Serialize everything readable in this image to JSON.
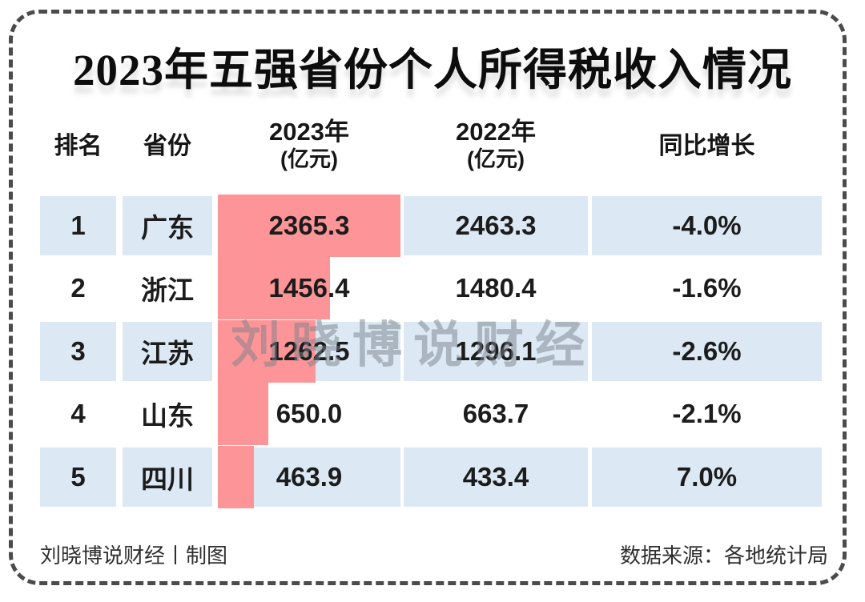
{
  "title": "2023年五强省份个人所得税收入情况",
  "table": {
    "headers": {
      "rank": "排名",
      "province": "省份",
      "y2023_line1": "2023年",
      "y2023_line2": "(亿元)",
      "y2022_line1": "2022年",
      "y2022_line2": "(亿元)",
      "growth": "同比增长"
    },
    "rows": [
      {
        "rank": "1",
        "province": "广东",
        "y2023": "2365.3",
        "y2022": "2463.3",
        "growth": "-4.0%"
      },
      {
        "rank": "2",
        "province": "浙江",
        "y2023": "1456.4",
        "y2022": "1480.4",
        "growth": "-1.6%"
      },
      {
        "rank": "3",
        "province": "江苏",
        "y2023": "1262.5",
        "y2022": "1296.1",
        "growth": "-2.6%"
      },
      {
        "rank": "4",
        "province": "山东",
        "y2023": "650.0",
        "y2022": "663.7",
        "growth": "-2.1%"
      },
      {
        "rank": "5",
        "province": "四川",
        "y2023": "463.9",
        "y2022": "433.4",
        "growth": "7.0%"
      }
    ]
  },
  "watermark": "刘晓博说财经",
  "footer": {
    "left": "刘晓博说财经丨制图",
    "right": "数据来源：各地统计局"
  },
  "colors": {
    "bar_pink": "#fd9598",
    "row_blue": "#dce9f4",
    "border_gray": "#4b4b4b"
  },
  "chart_data": {
    "type": "bar",
    "orientation": "horizontal",
    "title": "2023年五强省份个人所得税收入情况",
    "categories": [
      "广东",
      "浙江",
      "江苏",
      "山东",
      "四川"
    ],
    "ranks": [
      1,
      2,
      3,
      4,
      5
    ],
    "series": [
      {
        "name": "2023年(亿元)",
        "values": [
          2365.3,
          1456.4,
          1262.5,
          650.0,
          463.9
        ]
      },
      {
        "name": "2022年(亿元)",
        "values": [
          2463.3,
          1480.4,
          1296.1,
          663.7,
          433.4
        ]
      }
    ],
    "growth_yoy": [
      "-4.0%",
      "-1.6%",
      "-2.6%",
      "-2.1%",
      "7.0%"
    ],
    "xlim": [
      0,
      2365.3
    ],
    "grid": false,
    "legend_position": "none",
    "bar_color": "#fd9598"
  }
}
